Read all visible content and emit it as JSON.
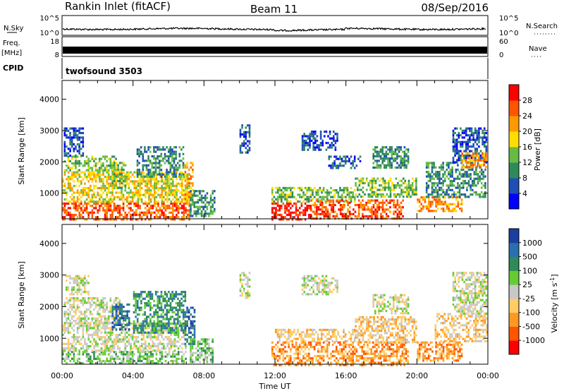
{
  "header": {
    "title": "Rankin Inlet (fitACF)",
    "beam": "Beam 11",
    "date": "08/Sep/2016"
  },
  "noise_panel": {
    "left_label": "N.Sky",
    "right_label": "N.Search",
    "left_ticks": [
      "10^5",
      "10^0"
    ],
    "right_ticks": [
      "10^5",
      "10^0"
    ]
  },
  "freq_panel": {
    "left_label_line1": "Freq.",
    "left_label_line2": "[MHz]",
    "right_label": "Nave",
    "left_ticks": [
      "18",
      "8"
    ],
    "right_ticks": [
      "60",
      "0"
    ]
  },
  "cpid_panel": {
    "label": "CPID",
    "program": "twofsound 3503"
  },
  "x_axis": {
    "label": "Time UT",
    "ticks": [
      "00:00",
      "04:00",
      "08:00",
      "12:00",
      "16:00",
      "20:00",
      "00:00"
    ]
  },
  "chart_data": [
    {
      "type": "heatmap",
      "quantity": "Power",
      "xlabel": "Time UT",
      "ylabel": "Slant Range [km]",
      "xlim_hours": [
        0,
        24
      ],
      "ylim": [
        180,
        4600
      ],
      "yticks": [
        "4000",
        "3000",
        "2000",
        "1000"
      ],
      "colorbar_label": "Power [dB]",
      "colorbar_ticks": [
        "28",
        "24",
        "20",
        "16",
        "12",
        "8",
        "4"
      ],
      "colorbar_colors": [
        "#0000ff",
        "#1f4fb4",
        "#2f8a5a",
        "#66bb44",
        "#ffdd00",
        "#ff9900",
        "#ff5500",
        "#ff0000"
      ],
      "echo_regions": [
        {
          "t0": 0.0,
          "t1": 7.2,
          "r0": 180,
          "r1": 700,
          "level": 6
        },
        {
          "t0": 0.0,
          "t1": 7.2,
          "r0": 700,
          "r1": 1700,
          "level": 4
        },
        {
          "t0": 0.1,
          "t1": 3.0,
          "r0": 1700,
          "r1": 2200,
          "level": 3
        },
        {
          "t0": 0.1,
          "t1": 1.2,
          "r0": 2200,
          "r1": 3100,
          "level": 1
        },
        {
          "t0": 2.8,
          "t1": 3.6,
          "r0": 1200,
          "r1": 2000,
          "level": 3
        },
        {
          "t0": 4.2,
          "t1": 6.8,
          "r0": 1500,
          "r1": 2500,
          "level": 2
        },
        {
          "t0": 6.9,
          "t1": 7.4,
          "r0": 700,
          "r1": 2000,
          "level": 5
        },
        {
          "t0": 7.2,
          "t1": 8.6,
          "r0": 300,
          "r1": 1100,
          "level": 2
        },
        {
          "t0": 10.0,
          "t1": 10.6,
          "r0": 2300,
          "r1": 3200,
          "level": 1
        },
        {
          "t0": 11.8,
          "t1": 14.0,
          "r0": 180,
          "r1": 700,
          "level": 7
        },
        {
          "t0": 11.8,
          "t1": 16.5,
          "r0": 700,
          "r1": 1200,
          "level": 3
        },
        {
          "t0": 14.0,
          "t1": 19.2,
          "r0": 180,
          "r1": 800,
          "level": 6
        },
        {
          "t0": 13.5,
          "t1": 15.5,
          "r0": 2400,
          "r1": 3000,
          "level": 1
        },
        {
          "t0": 15.0,
          "t1": 16.8,
          "r0": 1800,
          "r1": 2200,
          "level": 1
        },
        {
          "t0": 16.5,
          "t1": 20.0,
          "r0": 900,
          "r1": 1500,
          "level": 3
        },
        {
          "t0": 17.5,
          "t1": 19.5,
          "r0": 1800,
          "r1": 2500,
          "level": 2
        },
        {
          "t0": 20.0,
          "t1": 22.5,
          "r0": 400,
          "r1": 900,
          "level": 5
        },
        {
          "t0": 20.5,
          "t1": 23.9,
          "r0": 900,
          "r1": 2000,
          "level": 2
        },
        {
          "t0": 22.0,
          "t1": 23.9,
          "r0": 2000,
          "r1": 3100,
          "level": 1
        },
        {
          "t0": 22.5,
          "t1": 23.9,
          "r0": 1800,
          "r1": 2300,
          "level": 5
        }
      ]
    },
    {
      "type": "heatmap",
      "quantity": "Velocity",
      "xlabel": "Time UT",
      "ylabel": "Slant Range [km]",
      "xlim_hours": [
        0,
        24
      ],
      "ylim": [
        180,
        4600
      ],
      "yticks": [
        "4000",
        "3000",
        "2000",
        "1000"
      ],
      "colorbar_label": "Velocity [m s-1]",
      "colorbar_label_main": "Velocity [m s",
      "colorbar_label_exp": "-1",
      "colorbar_label_end": "]",
      "colorbar_ticks": [
        "1000",
        "500",
        "100",
        "25",
        "-25",
        "-100",
        "-500",
        "-1000"
      ],
      "colorbar_colors": [
        "#ff0000",
        "#ff5500",
        "#ff9922",
        "#ffcc66",
        "#c8c8c8",
        "#66cc33",
        "#2e8b57",
        "#2a6fb0",
        "#1a3fa0"
      ],
      "echo_regions": [
        {
          "t0": 0.0,
          "t1": 7.0,
          "r0": 180,
          "r1": 600,
          "level": 5
        },
        {
          "t0": 0.0,
          "t1": 7.0,
          "r0": 600,
          "r1": 1500,
          "level": 4
        },
        {
          "t0": 0.1,
          "t1": 3.2,
          "r0": 1500,
          "r1": 2300,
          "level": 4
        },
        {
          "t0": 2.8,
          "t1": 3.8,
          "r0": 1300,
          "r1": 2100,
          "level": 7
        },
        {
          "t0": 4.0,
          "t1": 6.9,
          "r0": 1200,
          "r1": 2500,
          "level": 6
        },
        {
          "t0": 6.9,
          "t1": 7.5,
          "r0": 800,
          "r1": 2000,
          "level": 7
        },
        {
          "t0": 7.2,
          "t1": 8.5,
          "r0": 250,
          "r1": 1000,
          "level": 5
        },
        {
          "t0": 0.2,
          "t1": 1.5,
          "r0": 2400,
          "r1": 3000,
          "level": 4
        },
        {
          "t0": 10.0,
          "t1": 10.6,
          "r0": 2300,
          "r1": 3100,
          "level": 4
        },
        {
          "t0": 11.8,
          "t1": 19.5,
          "r0": 180,
          "r1": 900,
          "level": 2
        },
        {
          "t0": 12.0,
          "t1": 16.5,
          "r0": 900,
          "r1": 1300,
          "level": 3
        },
        {
          "t0": 13.5,
          "t1": 15.5,
          "r0": 2400,
          "r1": 3000,
          "level": 4
        },
        {
          "t0": 16.5,
          "t1": 20.0,
          "r0": 900,
          "r1": 1700,
          "level": 3
        },
        {
          "t0": 17.5,
          "t1": 19.5,
          "r0": 1800,
          "r1": 2400,
          "level": 4
        },
        {
          "t0": 20.0,
          "t1": 22.5,
          "r0": 300,
          "r1": 900,
          "level": 2
        },
        {
          "t0": 21.0,
          "t1": 23.9,
          "r0": 900,
          "r1": 1800,
          "level": 3
        },
        {
          "t0": 22.0,
          "t1": 23.9,
          "r0": 1800,
          "r1": 3100,
          "level": 4
        }
      ]
    }
  ]
}
